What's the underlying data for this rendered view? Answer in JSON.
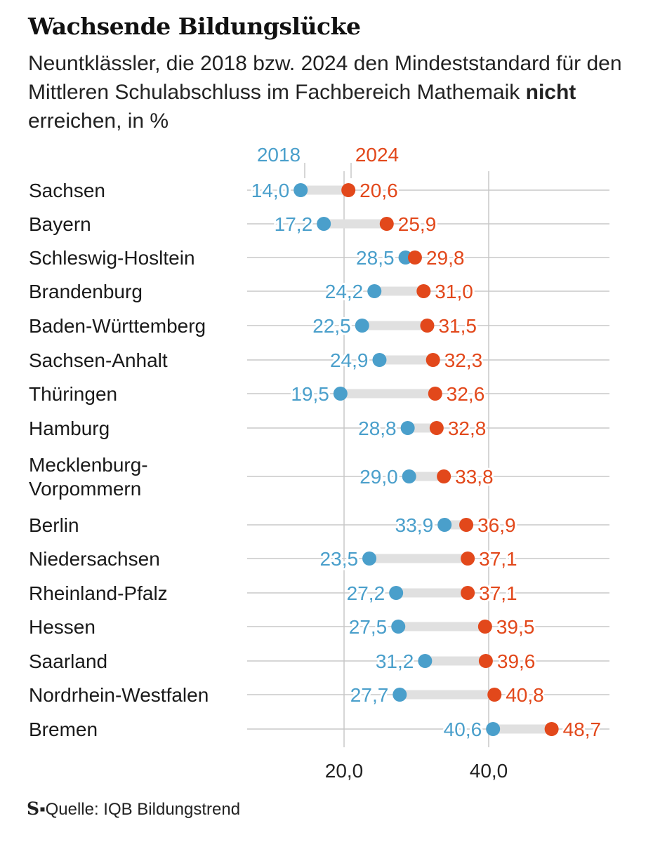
{
  "title": "Wachsende Bildungslücke",
  "subtitle": {
    "before": "Neuntklässler, die 2018 bzw. 2024 den Mindeststandard für den Mittleren Schulabschluss im Fachbereich Mathemaik ",
    "bold": "nicht",
    "after": " erreichen, in %"
  },
  "colors": {
    "y2018": "#4a9fcb",
    "y2024": "#e2481b",
    "connector": "#e0e0e0",
    "grid": "#c8c8c8"
  },
  "chart_data": {
    "type": "dumbbell",
    "title": "Wachsende Bildungslücke",
    "series": [
      {
        "name": "2018",
        "values": [
          14.0,
          17.2,
          28.5,
          24.2,
          22.5,
          24.9,
          19.5,
          28.8,
          29.0,
          33.9,
          23.5,
          27.2,
          27.5,
          31.2,
          27.7,
          40.6
        ]
      },
      {
        "name": "2024",
        "values": [
          20.6,
          25.9,
          29.8,
          31.0,
          31.5,
          32.3,
          32.6,
          32.8,
          33.8,
          36.9,
          37.1,
          37.1,
          39.5,
          39.6,
          40.8,
          48.7
        ]
      }
    ],
    "categories": [
      [
        "Sachsen"
      ],
      [
        "Bayern"
      ],
      [
        "Schleswig-Hosltein"
      ],
      [
        "Brandenburg"
      ],
      [
        "Baden-Württemberg"
      ],
      [
        "Sachsen-Anhalt"
      ],
      [
        "Thüringen"
      ],
      [
        "Hamburg"
      ],
      [
        "Mecklenburg-",
        "Vorpommern"
      ],
      [
        "Berlin"
      ],
      [
        "Niedersachsen"
      ],
      [
        "Rheinland-Pfalz"
      ],
      [
        "Hessen"
      ],
      [
        "Saarland"
      ],
      [
        "Nordrhein-Westfalen"
      ],
      [
        "Bremen"
      ]
    ],
    "labels_2018": [
      "14,0",
      "17,2",
      "28,5",
      "24,2",
      "22,5",
      "24,9",
      "19,5",
      "28,8",
      "29,0",
      "33,9",
      "23,5",
      "27,2",
      "27,5",
      "31,2",
      "27,7",
      "40,6"
    ],
    "labels_2024": [
      "20,6",
      "25,9",
      "29,8",
      "31,0",
      "31,5",
      "32,3",
      "32,6",
      "32,8",
      "33,8",
      "36,9",
      "37,1",
      "37,1",
      "39,5",
      "39,6",
      "40,8",
      "48,7"
    ],
    "xticks": [
      20,
      40
    ],
    "xtick_labels": [
      "20,0",
      "40,0"
    ],
    "xlim": [
      0,
      50
    ],
    "grid": true
  },
  "source": {
    "logo": "S",
    "separator": "▪",
    "text": "Quelle: IQB Bildungstrend"
  }
}
